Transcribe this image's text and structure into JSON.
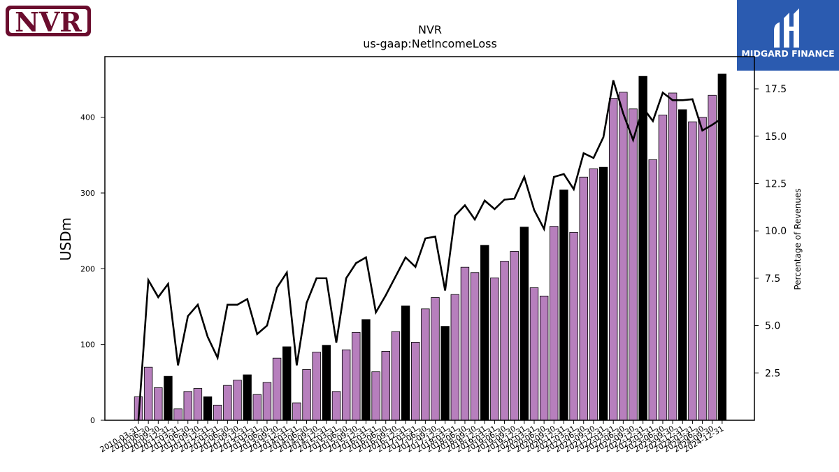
{
  "company_logo": {
    "text": "NVR",
    "color": "#6b0d2e"
  },
  "brand_logo": {
    "text": "MIDGARD FINANCE",
    "bg": "#2b5bb0"
  },
  "chart_data": {
    "type": "bar",
    "title": "NVR",
    "subtitle": "us-gaap:NetIncomeLoss",
    "ylabel": "USDm",
    "y2label": "Percentage of Revenues",
    "ylim": [
      0,
      480
    ],
    "y2lim": [
      0,
      19.2
    ],
    "yticks": [
      0,
      100,
      200,
      300,
      400
    ],
    "y2ticks": [
      "2.5",
      "5.0",
      "7.5",
      "10.0",
      "12.5",
      "15.0",
      "17.5"
    ],
    "colors": {
      "quarter_bar": "#b77fbd",
      "annual_bar": "#000000",
      "line": "#000000"
    },
    "categories": [
      "2010-03-31",
      "2010-06-30",
      "2010-09-30",
      "2010-12-31",
      "2011-03-31",
      "2011-06-30",
      "2011-09-30",
      "2011-12-31",
      "2012-03-31",
      "2012-06-30",
      "2012-09-30",
      "2012-12-31",
      "2013-03-31",
      "2013-06-30",
      "2013-09-30",
      "2013-12-31",
      "2014-03-31",
      "2014-06-30",
      "2014-09-30",
      "2014-12-31",
      "2015-03-31",
      "2015-06-30",
      "2015-09-30",
      "2015-12-31",
      "2016-03-31",
      "2016-06-30",
      "2016-09-30",
      "2016-12-31",
      "2017-03-31",
      "2017-06-30",
      "2017-09-30",
      "2017-12-31",
      "2018-03-31",
      "2018-06-30",
      "2018-09-30",
      "2018-12-31",
      "2019-03-31",
      "2019-06-30",
      "2019-09-30",
      "2019-12-31",
      "2020-03-31",
      "2020-06-30",
      "2020-09-30",
      "2020-12-31",
      "2021-03-31",
      "2021-06-30",
      "2021-09-30",
      "2021-12-31",
      "2022-03-31",
      "2022-06-30",
      "2022-09-30",
      "2022-12-31",
      "2023-03-31",
      "2023-06-30",
      "2023-09-30",
      "2023-12-31",
      "2024-03-31",
      "2024-06-30",
      "2024-09-30",
      "2024-12-31"
    ],
    "series": [
      {
        "type": "bar",
        "values": [
          31,
          70,
          43,
          58,
          15,
          38,
          42,
          31,
          20,
          46,
          53,
          60,
          34,
          50,
          82,
          97,
          23,
          67,
          90,
          99,
          38,
          93,
          116,
          133,
          64,
          91,
          117,
          151,
          103,
          147,
          162,
          124,
          166,
          202,
          195,
          231,
          188,
          210,
          223,
          255,
          175,
          164,
          256,
          304,
          248,
          321,
          332,
          334,
          425,
          433,
          411,
          454,
          344,
          403,
          432,
          410,
          394,
          400,
          429,
          457
        ]
      },
      {
        "type": "line",
        "axis": "right",
        "values": [
          0,
          7.4,
          6.5,
          7.2,
          2.9,
          5.5,
          6.1,
          4.4,
          3.3,
          6.1,
          6.1,
          6.4,
          4.55,
          5.0,
          7.0,
          7.8,
          2.9,
          6.2,
          7.5,
          7.5,
          4.1,
          7.5,
          8.3,
          8.6,
          5.7,
          6.6,
          7.6,
          8.6,
          8.1,
          9.6,
          9.7,
          6.85,
          10.8,
          11.35,
          10.6,
          11.6,
          11.15,
          11.65,
          11.7,
          12.85,
          11.1,
          10.1,
          12.85,
          13.0,
          12.2,
          14.1,
          13.85,
          14.95,
          17.95,
          16.2,
          14.8,
          16.5,
          15.8,
          17.3,
          16.9,
          16.9,
          16.95,
          15.3,
          15.6,
          15.95
        ]
      }
    ]
  }
}
